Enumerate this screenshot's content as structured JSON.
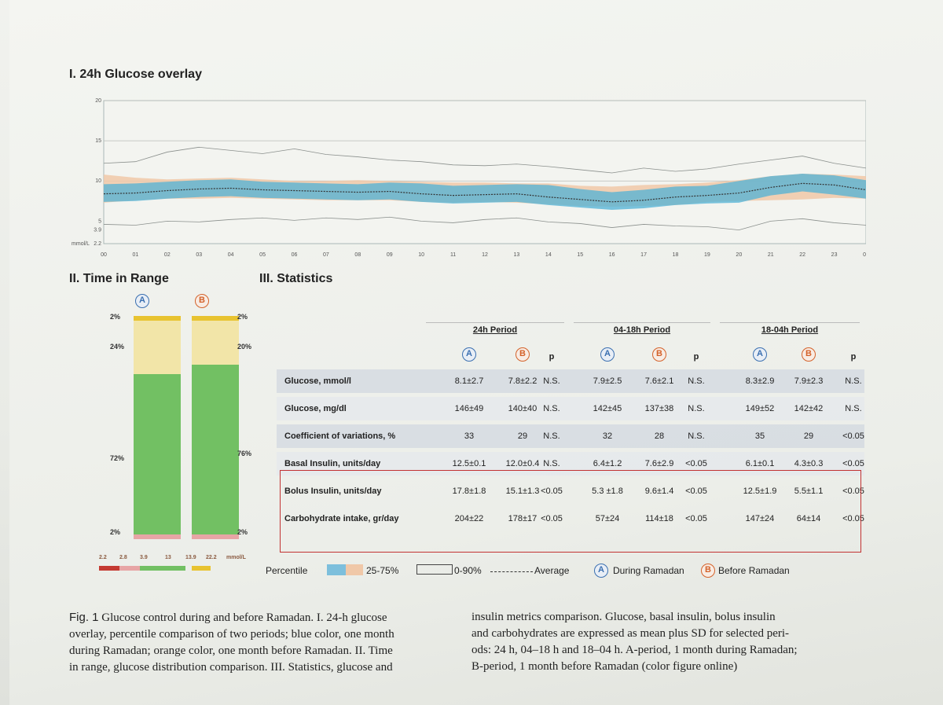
{
  "figure": {
    "section1_title": "I. 24h Glucose overlay",
    "section2_title": "II. Time in Range",
    "section3_title": "III. Statistics"
  },
  "chart_data": [
    {
      "type": "area",
      "title": "I. 24h Glucose overlay",
      "y_unit_label": "mmol/L",
      "y_ticks": [
        "20",
        "15",
        "10",
        "5",
        "3.9",
        "2.2"
      ],
      "ylim": [
        2.2,
        20
      ],
      "x_ticks": [
        "00",
        "01",
        "02",
        "03",
        "04",
        "05",
        "06",
        "07",
        "08",
        "09",
        "10",
        "11",
        "12",
        "13",
        "14",
        "15",
        "16",
        "17",
        "18",
        "19",
        "20",
        "21",
        "22",
        "23",
        "00"
      ],
      "grid": true,
      "x": [
        0,
        1,
        2,
        3,
        4,
        5,
        6,
        7,
        8,
        9,
        10,
        11,
        12,
        13,
        14,
        15,
        16,
        17,
        18,
        19,
        20,
        21,
        22,
        23,
        24
      ],
      "series": [
        {
          "group": "A",
          "color": "#4fb2d6",
          "average": [
            8.4,
            8.5,
            8.8,
            9.0,
            9.1,
            8.9,
            8.8,
            8.7,
            8.6,
            8.7,
            8.4,
            8.2,
            8.3,
            8.4,
            8.0,
            7.7,
            7.4,
            7.6,
            8.0,
            8.2,
            8.5,
            9.2,
            9.7,
            9.5,
            8.9
          ],
          "p25": [
            7.4,
            7.5,
            7.8,
            8.0,
            8.1,
            7.9,
            7.8,
            7.7,
            7.6,
            7.7,
            7.4,
            7.2,
            7.3,
            7.4,
            7.0,
            6.7,
            6.4,
            6.6,
            7.0,
            7.2,
            7.3,
            8.2,
            8.7,
            8.3,
            7.8
          ],
          "p75": [
            9.6,
            9.7,
            9.9,
            10.1,
            10.2,
            9.9,
            9.8,
            9.7,
            9.6,
            9.8,
            9.7,
            9.4,
            9.5,
            9.6,
            9.5,
            9.0,
            8.6,
            8.9,
            9.3,
            9.4,
            10.0,
            10.6,
            10.9,
            10.7,
            10.1
          ]
        },
        {
          "group": "B",
          "color": "#f0c8a8",
          "p25": [
            7.3,
            7.6,
            7.8,
            7.8,
            7.9,
            7.8,
            7.7,
            7.6,
            7.6,
            7.6,
            7.4,
            7.3,
            7.4,
            7.3,
            7.1,
            6.9,
            6.8,
            6.9,
            7.0,
            7.4,
            7.5,
            7.6,
            7.7,
            7.9,
            7.8
          ],
          "p75": [
            10.8,
            10.4,
            10.2,
            10.3,
            10.4,
            10.2,
            10.0,
            10.0,
            10.1,
            10.0,
            9.9,
            9.8,
            9.8,
            9.7,
            9.7,
            9.4,
            9.3,
            9.5,
            9.6,
            9.8,
            10.1,
            10.6,
            10.9,
            10.8,
            10.6
          ]
        },
        {
          "group": "A",
          "band": "p10",
          "values": [
            4.6,
            4.5,
            5.0,
            4.9,
            5.2,
            5.4,
            5.1,
            5.4,
            5.2,
            5.5,
            5.0,
            4.8,
            5.2,
            5.4,
            4.9,
            4.7,
            4.2,
            4.6,
            4.4,
            4.3,
            3.9,
            5.0,
            5.3,
            4.8,
            4.5
          ]
        },
        {
          "group": "A",
          "band": "p90",
          "values": [
            12.2,
            12.4,
            13.6,
            14.2,
            13.8,
            13.4,
            14.0,
            13.3,
            13.0,
            12.6,
            12.4,
            12.0,
            11.9,
            12.1,
            11.8,
            11.4,
            11.0,
            11.6,
            11.2,
            11.5,
            12.1,
            12.6,
            13.1,
            12.2,
            11.6
          ]
        }
      ],
      "legend": {
        "percentile_label": "Percentile",
        "iqr_label": "25-75%",
        "outer_label": "0-90%",
        "average_label": "Average",
        "a_label": "During Ramadan",
        "b_label": "Before Ramadan"
      }
    },
    {
      "type": "bar",
      "title": "II. Time in Range",
      "categories": [
        "A",
        "B"
      ],
      "series": [
        {
          "name": "top",
          "values": [
            2,
            2
          ],
          "color": "#e8c330"
        },
        {
          "name": "high",
          "values": [
            24,
            20
          ],
          "color": "#f2e5a8"
        },
        {
          "name": "range",
          "values": [
            72,
            76
          ],
          "color": "#72c063"
        },
        {
          "name": "low",
          "values": [
            2,
            2
          ],
          "color": "#e7a5a5"
        }
      ],
      "labels_a": [
        "2%",
        "24%",
        "72%",
        "2%"
      ],
      "labels_b": [
        "2%",
        "20%",
        "76%",
        "2%"
      ],
      "scale_ticks": [
        "2.2",
        "2.8",
        "3.9",
        "13",
        "13.9",
        "22.2",
        "mmol/L"
      ]
    }
  ],
  "stats": {
    "periods": [
      "24h Period",
      "04-18h Period",
      "18-04h Period"
    ],
    "col_headers": [
      "A",
      "B",
      "p"
    ],
    "rows": [
      {
        "label": "Glucose, mmol/l",
        "values": [
          "8.1±2.7",
          "7.8±2.2",
          "N.S.",
          "7.9±2.5",
          "7.6±2.1",
          "N.S.",
          "8.3±2.9",
          "7.9±2.3",
          "N.S."
        ]
      },
      {
        "label": "Glucose, mg/dl",
        "values": [
          "146±49",
          "140±40",
          "N.S.",
          "142±45",
          "137±38",
          "N.S.",
          "149±52",
          "142±42",
          "N.S."
        ]
      },
      {
        "label": "Coefficient of variations, %",
        "values": [
          "33",
          "29",
          "N.S.",
          "32",
          "28",
          "N.S.",
          "35",
          "29",
          "<0.05"
        ]
      },
      {
        "label": "Basal Insulin, units/day",
        "values": [
          "12.5±0.1",
          "12.0±0.4",
          "N.S.",
          "6.4±1.2",
          "7.6±2.9",
          "<0.05",
          "6.1±0.1",
          "4.3±0.3",
          "<0.05"
        ]
      },
      {
        "label": "Bolus Insulin, units/day",
        "values": [
          "17.8±1.8",
          "15.1±1.3",
          "<0.05",
          "5.3 ±1.8",
          "9.6±1.4",
          "<0.05",
          "12.5±1.9",
          "5.5±1.1",
          "<0.05"
        ]
      },
      {
        "label": "Carbohydrate intake, gr/day",
        "values": [
          "204±22",
          "178±17",
          "<0.05",
          "57±24",
          "114±18",
          "<0.05",
          "147±24",
          "64±14",
          "<0.05"
        ]
      }
    ]
  },
  "caption": {
    "fig_label": "Fig. 1",
    "col1_line1": " Glucose control during and before Ramadan. I. 24-h glucose",
    "col1_line2": "overlay, percentile comparison of two periods; blue color, one month",
    "col1_line3": "during Ramadan; orange color, one month before Ramadan. II. Time",
    "col1_line4": "in range, glucose distribution comparison. III. Statistics, glucose and",
    "col2_line1": "insulin metrics comparison. Glucose, basal insulin, bolus insulin",
    "col2_line2": "and carbohydrates are expressed as mean plus SD for selected peri-",
    "col2_line3": "ods: 24 h, 04–18 h and 18–04 h. A-period, 1 month during Ramadan;",
    "col2_line4": "B-period, 1 month before Ramadan (color figure online)"
  },
  "colors": {
    "a": "#3a6fb0",
    "b": "#d4622a",
    "box": "#c23232"
  }
}
